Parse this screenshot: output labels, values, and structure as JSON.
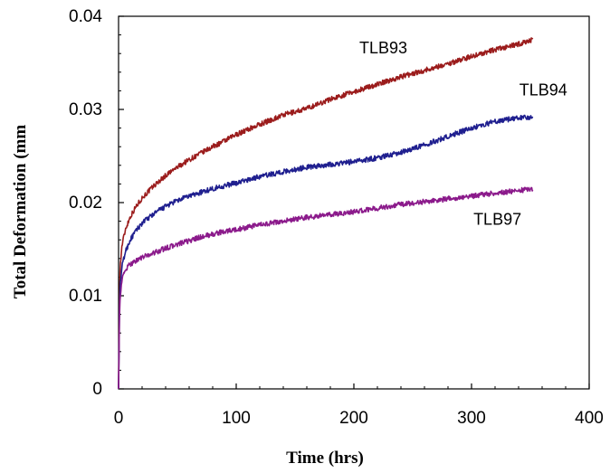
{
  "chart_data": {
    "type": "line",
    "title": "",
    "xlabel": "Time (hrs)",
    "ylabel": "Total Deformation (mm",
    "xlim": [
      0,
      400
    ],
    "ylim": [
      0,
      0.04
    ],
    "x_ticks": [
      0,
      100,
      200,
      300,
      400
    ],
    "x_tick_labels": [
      "0",
      "100",
      "200",
      "300",
      "400"
    ],
    "y_ticks": [
      0,
      0.01,
      0.02,
      0.03,
      0.04
    ],
    "y_tick_labels": [
      "0",
      "0.01",
      "0.02",
      "0.03",
      "0.04"
    ],
    "grid": false,
    "legend": "none",
    "series": [
      {
        "name": "TLB93",
        "color": "#9b1c1c",
        "x": [
          0,
          1,
          3,
          6,
          10,
          15,
          20,
          30,
          40,
          50,
          60,
          70,
          80,
          90,
          100,
          120,
          140,
          160,
          180,
          200,
          220,
          240,
          260,
          280,
          300,
          320,
          340,
          352
        ],
        "y": [
          0,
          0.0125,
          0.0155,
          0.0172,
          0.0185,
          0.0196,
          0.0205,
          0.0218,
          0.0229,
          0.0238,
          0.0246,
          0.0253,
          0.026,
          0.0266,
          0.0273,
          0.0284,
          0.0294,
          0.0301,
          0.0311,
          0.0319,
          0.0327,
          0.0335,
          0.0342,
          0.0349,
          0.0357,
          0.0364,
          0.037,
          0.0375
        ]
      },
      {
        "name": "TLB94",
        "color": "#1f1f8f",
        "x": [
          0,
          1,
          3,
          6,
          10,
          15,
          20,
          30,
          40,
          50,
          60,
          70,
          80,
          90,
          100,
          120,
          140,
          160,
          180,
          200,
          220,
          240,
          260,
          280,
          300,
          320,
          340,
          352
        ],
        "y": [
          0,
          0.0105,
          0.0132,
          0.0148,
          0.016,
          0.017,
          0.0178,
          0.0188,
          0.0196,
          0.0202,
          0.0207,
          0.0211,
          0.0215,
          0.0218,
          0.0221,
          0.0228,
          0.0233,
          0.0238,
          0.0241,
          0.0244,
          0.0248,
          0.0254,
          0.0262,
          0.0271,
          0.028,
          0.0287,
          0.0291,
          0.0292
        ]
      },
      {
        "name": "TLB97",
        "color": "#8b1a8b",
        "x": [
          0,
          1,
          3,
          6,
          10,
          15,
          20,
          30,
          40,
          50,
          60,
          70,
          80,
          90,
          100,
          120,
          140,
          160,
          180,
          200,
          220,
          240,
          260,
          280,
          300,
          320,
          340,
          352
        ],
        "y": [
          0,
          0.0095,
          0.0118,
          0.0128,
          0.0134,
          0.0138,
          0.0141,
          0.0146,
          0.0151,
          0.0155,
          0.0159,
          0.0163,
          0.0166,
          0.0169,
          0.0171,
          0.0176,
          0.018,
          0.0184,
          0.0187,
          0.019,
          0.0194,
          0.0198,
          0.0201,
          0.0204,
          0.0207,
          0.021,
          0.0213,
          0.0215
        ]
      }
    ],
    "annotations": [
      {
        "text": "TLB93",
        "x": 225,
        "y": 0.036
      },
      {
        "text": "TLB94",
        "x": 361,
        "y": 0.0315
      },
      {
        "text": "TLB97",
        "x": 322,
        "y": 0.0176
      }
    ]
  }
}
